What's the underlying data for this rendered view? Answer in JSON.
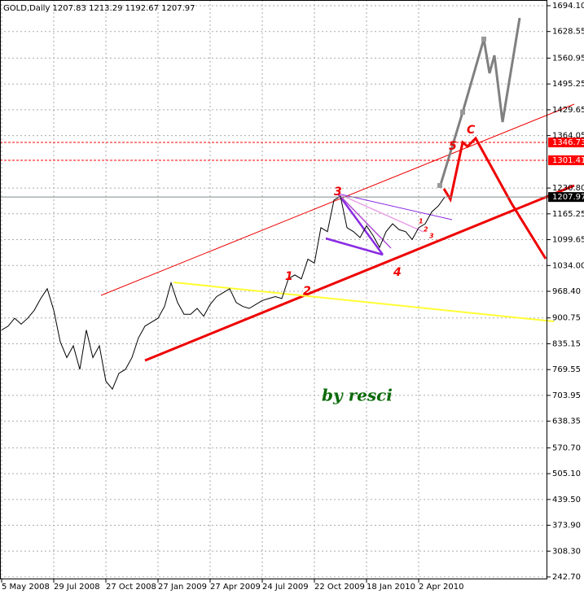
{
  "chart_data": {
    "type": "line",
    "title": "GOLD,Daily  1207.83 1213.29 1192.67 1207.97",
    "categories": [
      "5 May 2008",
      null,
      null,
      null,
      null,
      null,
      null,
      null,
      "29 Jul 2008",
      null,
      null,
      null,
      null,
      null,
      null,
      null,
      "27 Oct 2008",
      null,
      null,
      null,
      null,
      null,
      null,
      null,
      "27 Jan 2009",
      null,
      null,
      null,
      null,
      null,
      null,
      null,
      "27 Apr 2009",
      null,
      null,
      null,
      null,
      null,
      null,
      null,
      "24 Jul 2009",
      null,
      null,
      null,
      null,
      null,
      null,
      null,
      "22 Oct 2009",
      null,
      null,
      null,
      null,
      null,
      null,
      null,
      "18 Jan 2010",
      null,
      null,
      null,
      null,
      null,
      null,
      null,
      "2 Apr 2010",
      null,
      null,
      null,
      null
    ],
    "series": [
      {
        "name": "GOLD",
        "color": "#000000",
        "values": [
          870,
          880,
          900,
          885,
          900,
          920,
          950,
          975,
          920,
          840,
          800,
          830,
          770,
          870,
          800,
          830,
          740,
          720,
          760,
          770,
          800,
          850,
          880,
          890,
          900,
          930,
          990,
          940,
          910,
          910,
          925,
          905,
          935,
          955,
          965,
          975,
          940,
          930,
          925,
          935,
          945,
          950,
          955,
          950,
          1000,
          1010,
          1000,
          1050,
          1040,
          1130,
          1120,
          1200,
          1210,
          1130,
          1120,
          1105,
          1135,
          1110,
          1080,
          1120,
          1140,
          1125,
          1120,
          1100,
          1130,
          1140,
          1170,
          1185,
          1208
        ]
      }
    ],
    "ylim": [
      236.5,
      1708.6
    ],
    "yticks": [
      {
        "value": 1694.1,
        "label": "1694.10"
      },
      1628.55,
      1560.95,
      1495.25,
      1429.65,
      1364.05,
      {
        "value": 1230.8,
        "label": "1230.80"
      },
      1165.25,
      1099.65,
      {
        "value": 1034.0,
        "label": "1034.00"
      },
      {
        "value": 968.4,
        "label": "968.40"
      },
      900.75,
      835.15,
      769.55,
      703.95,
      638.35,
      {
        "value": 570.7,
        "label": "570.70"
      },
      {
        "value": 505.1,
        "label": "505.10"
      },
      {
        "value": 439.5,
        "label": "439.50"
      },
      {
        "value": 373.9,
        "label": "373.90"
      },
      {
        "value": 308.3,
        "label": "308.30"
      },
      {
        "value": 242.7,
        "label": "242.70"
      }
    ],
    "grid": true,
    "levels": [
      {
        "value": 1346.73,
        "color": "#ff0000",
        "style": "dashed"
      },
      {
        "value": 1301.41,
        "color": "#ff0000",
        "style": "dashed"
      },
      {
        "value": 1207.97,
        "color": "#7f8c8d",
        "style": "solid"
      }
    ],
    "annotations": [
      "3",
      "1",
      "2",
      "4",
      "5",
      "C",
      "1",
      "2",
      "3",
      "by resci"
    ]
  }
}
